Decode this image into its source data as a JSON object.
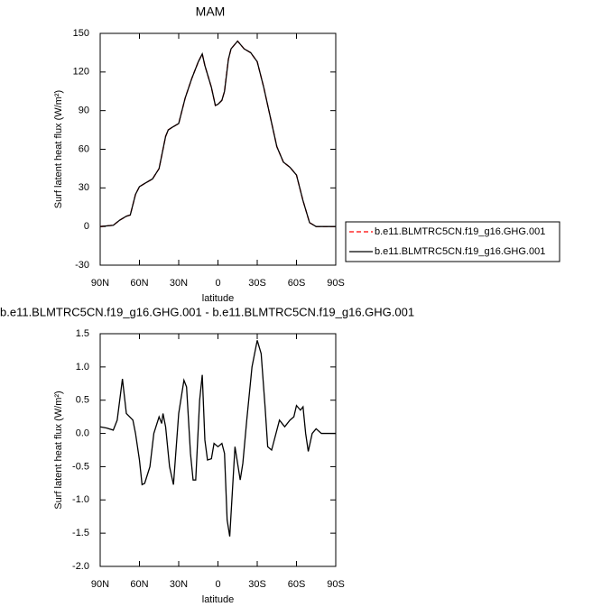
{
  "chart_data": [
    {
      "type": "line",
      "title": "MAM",
      "xlabel": "latitude",
      "ylabel": "Surf latent heat flux (W/m²)",
      "x": [
        90,
        80,
        75,
        70,
        67,
        63,
        60,
        55,
        50,
        45,
        40,
        38,
        35,
        30,
        25,
        20,
        15,
        12,
        10,
        5,
        2,
        0,
        -3,
        -5,
        -8,
        -10,
        -15,
        -20,
        -25,
        -30,
        -35,
        -40,
        -45,
        -50,
        -55,
        -60,
        -65,
        -70,
        -75,
        -80,
        -90
      ],
      "series": [
        {
          "name": "b.e11.BLMTRC5CN.f19_g16.GHG.001",
          "color": "#ff0000",
          "line_style": "dashed",
          "values": [
            0,
            1,
            5,
            8,
            9,
            25,
            31,
            34,
            37,
            45,
            70,
            75,
            77,
            80,
            100,
            115,
            128,
            134,
            125,
            108,
            94,
            95,
            98,
            105,
            130,
            138,
            144,
            138,
            135,
            128,
            108,
            85,
            62,
            50,
            46,
            40,
            20,
            3,
            0,
            0,
            0
          ]
        },
        {
          "name": "b.e11.BLMTRC5CN.f19_g16.GHG.001",
          "color": "#000000",
          "line_style": "solid",
          "values": [
            0,
            1,
            5,
            8,
            9,
            25,
            31,
            34,
            37,
            45,
            70,
            75,
            77,
            80,
            100,
            115,
            128,
            134,
            125,
            108,
            94,
            95,
            98,
            105,
            130,
            138,
            144,
            138,
            135,
            128,
            108,
            85,
            62,
            50,
            46,
            40,
            20,
            3,
            0,
            0,
            0
          ]
        }
      ],
      "xlim": [
        90,
        -90
      ],
      "xticks": [
        {
          "value": 90,
          "label": "90N"
        },
        {
          "value": 60,
          "label": "60N"
        },
        {
          "value": 30,
          "label": "30N"
        },
        0,
        {
          "value": -30,
          "label": "30S"
        },
        {
          "value": -60,
          "label": "60S"
        },
        {
          "value": -90,
          "label": "90S"
        }
      ],
      "ylim": [
        -30,
        150
      ],
      "yticks": [
        -30,
        0,
        30,
        60,
        90,
        120,
        150
      ],
      "grid": false,
      "legend": "right"
    },
    {
      "type": "line",
      "title": "b.e11.BLMTRC5CN.f19_g16.GHG.001 - b.e11.BLMTRC5CN.f19_g16.GHG.001",
      "xlabel": "latitude",
      "ylabel": "Surf latent heat flux (W/m²)",
      "x": [
        90,
        85,
        80,
        77,
        73,
        70,
        65,
        63,
        60,
        58,
        56,
        52,
        49,
        45,
        43,
        42,
        40,
        37,
        34,
        30,
        26,
        24,
        21,
        19,
        17,
        14,
        12,
        10,
        8,
        5,
        3,
        0,
        -3,
        -5,
        -7,
        -9,
        -13,
        -17,
        -19,
        -22,
        -26,
        -30,
        -33,
        -36,
        -38,
        -41,
        -47,
        -51,
        -55,
        -58,
        -60,
        -63,
        -65,
        -67,
        -69,
        -72,
        -75,
        -79,
        -90
      ],
      "series": [
        {
          "color": "#000000",
          "line_style": "solid",
          "values": [
            0.1,
            0.08,
            0.05,
            0.2,
            0.82,
            0.3,
            0.2,
            0.0,
            -0.4,
            -0.77,
            -0.75,
            -0.5,
            0.0,
            0.25,
            0.15,
            0.3,
            0.1,
            -0.5,
            -0.77,
            0.3,
            0.8,
            0.7,
            -0.3,
            -0.7,
            -0.7,
            0.5,
            0.88,
            -0.1,
            -0.4,
            -0.38,
            -0.15,
            -0.2,
            -0.15,
            -0.3,
            -1.3,
            -1.55,
            -0.2,
            -0.7,
            -0.45,
            0.2,
            1.0,
            1.4,
            1.2,
            0.4,
            -0.2,
            -0.25,
            0.2,
            0.1,
            0.2,
            0.25,
            0.42,
            0.35,
            0.4,
            0.0,
            -0.27,
            0.0,
            0.07,
            0.0,
            0.0
          ]
        }
      ],
      "xlim": [
        90,
        -90
      ],
      "xticks": [
        {
          "value": 90,
          "label": "90N"
        },
        {
          "value": 60,
          "label": "60N"
        },
        {
          "value": 30,
          "label": "30N"
        },
        0,
        {
          "value": -30,
          "label": "30S"
        },
        {
          "value": -60,
          "label": "60S"
        },
        {
          "value": -90,
          "label": "90S"
        }
      ],
      "ylim": [
        -2,
        1.5
      ],
      "yticks": [
        {
          "value": -2,
          "label": "-2.0"
        },
        -1.5,
        {
          "value": -1,
          "label": "-1.0"
        },
        -0.5,
        {
          "value": 0,
          "label": "0.0"
        },
        0.5,
        {
          "value": 1,
          "label": "1.0"
        },
        1.5
      ],
      "grid": false
    }
  ]
}
